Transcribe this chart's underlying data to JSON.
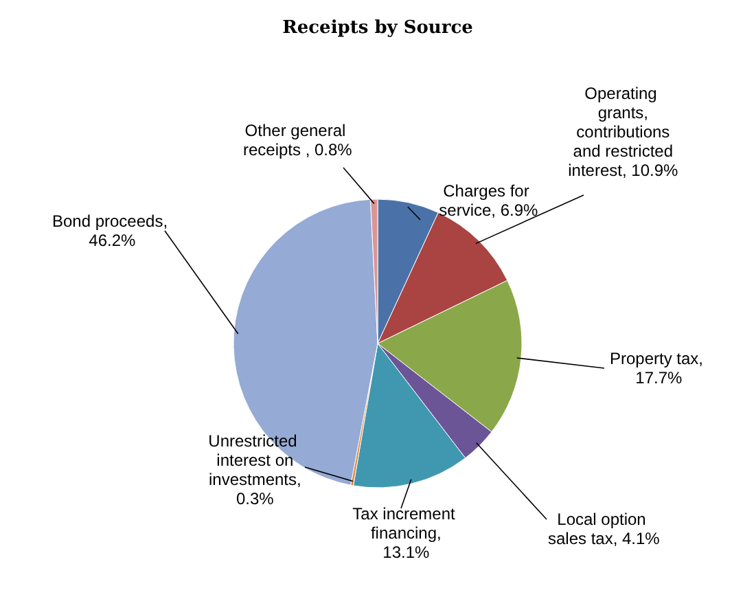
{
  "chart_data": {
    "type": "pie",
    "title": "Receipts by Source",
    "categories": [
      "Charges for service",
      "Operating grants, contributions and restricted interest",
      "Property tax",
      "Local option sales tax",
      "Tax increment financing",
      "Unrestricted interest on investments",
      "Bond proceeds",
      "Other general receipts "
    ],
    "value_labels": [
      ", 6.9%",
      ", 10.9%",
      ", 17.7%",
      ", 4.1%",
      ", 13.1%",
      ", 0.3%",
      ", 46.2%",
      ", 0.8%"
    ],
    "values": [
      6.9,
      10.9,
      17.7,
      4.1,
      13.1,
      0.3,
      46.2,
      0.8
    ],
    "colors": [
      "#4a72a8",
      "#a94442",
      "#8aa84a",
      "#6b5597",
      "#3f98b0",
      "#e08a3c",
      "#95aad4",
      "#d99694"
    ]
  }
}
